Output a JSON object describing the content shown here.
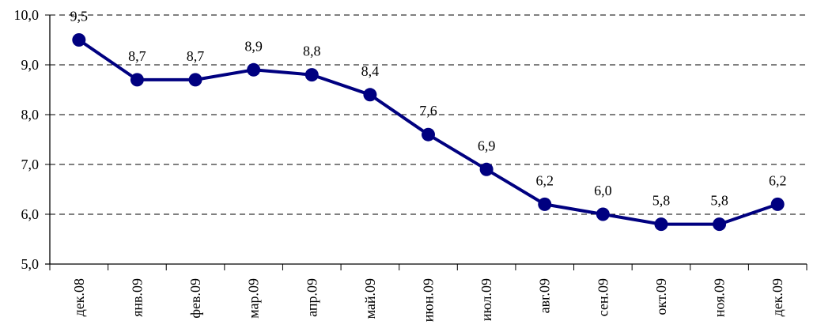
{
  "chart_data": {
    "type": "line",
    "title": "",
    "xlabel": "",
    "ylabel": "",
    "categories": [
      "дек.08",
      "янв.09",
      "фев.09",
      "мар.09",
      "апр.09",
      "май.09",
      "июн.09",
      "июл.09",
      "авг.09",
      "сен.09",
      "окт.09",
      "ноя.09",
      "дек.09"
    ],
    "series": [
      {
        "name": "",
        "values": [
          9.5,
          8.7,
          8.7,
          8.9,
          8.8,
          8.4,
          7.6,
          6.9,
          6.2,
          6.0,
          5.8,
          5.8,
          6.2
        ],
        "color": "#000080"
      }
    ],
    "data_labels": [
      "9,5",
      "8,7",
      "8,7",
      "8,9",
      "8,8",
      "8,4",
      "7,6",
      "6,9",
      "6,2",
      "6,0",
      "5,8",
      "5,8",
      "6,2"
    ],
    "ylim": [
      5.0,
      10.0
    ],
    "yticks": [
      5.0,
      6.0,
      7.0,
      8.0,
      9.0,
      10.0
    ],
    "ytick_labels": [
      "5,0",
      "6,0",
      "7,0",
      "8,0",
      "9,0",
      "10,0"
    ],
    "grid": "horizontal dashed",
    "legend": "none"
  }
}
